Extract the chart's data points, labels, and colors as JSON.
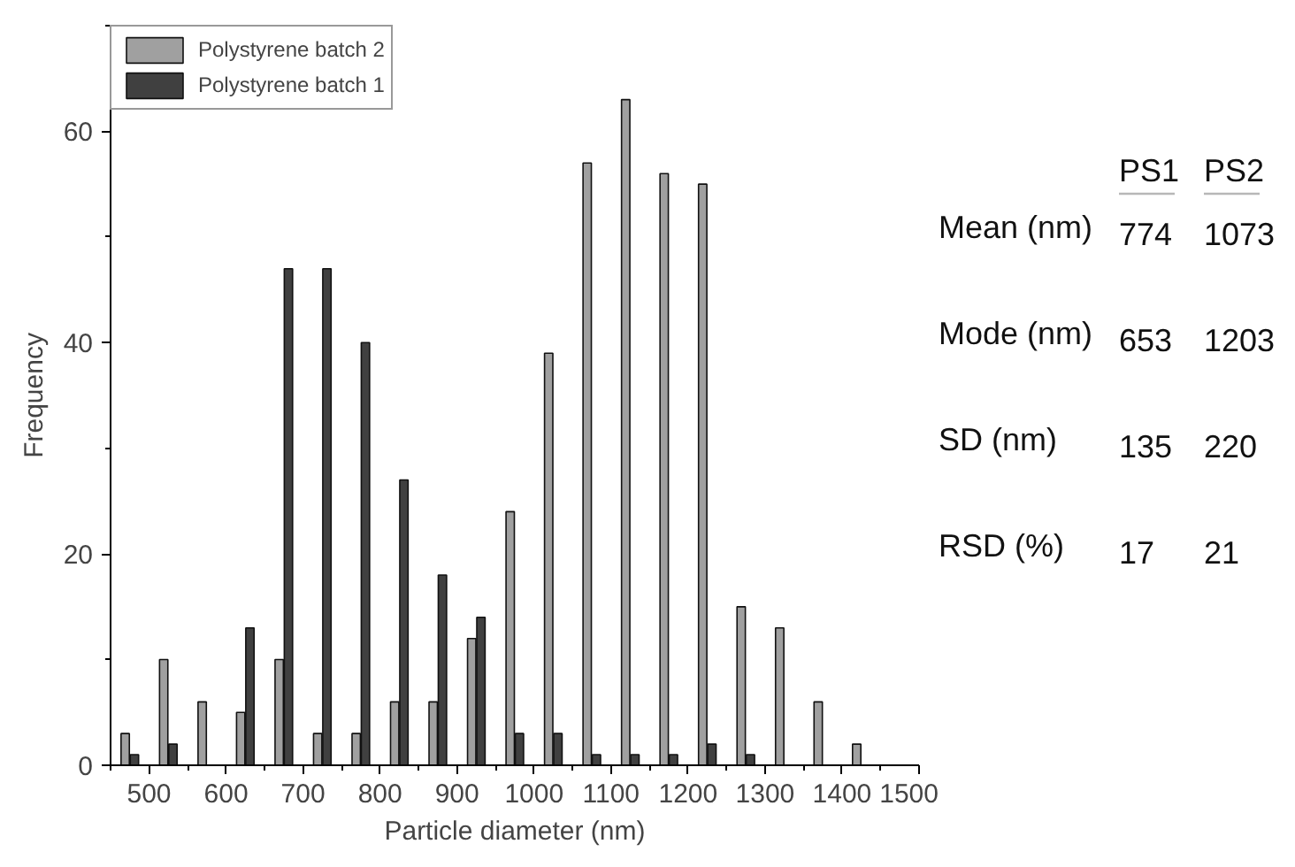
{
  "chart_data": {
    "type": "bar",
    "xlabel": "Particle diameter (nm)",
    "ylabel": "Frequency",
    "x": [
      475,
      525,
      575,
      625,
      675,
      725,
      775,
      825,
      875,
      925,
      975,
      1025,
      1075,
      1125,
      1175,
      1225,
      1275,
      1325,
      1375,
      1425
    ],
    "series": [
      {
        "name": "Polystyrene batch 2",
        "color": "#a0a0a0",
        "values": [
          3,
          10,
          6,
          5,
          10,
          3,
          3,
          6,
          6,
          12,
          24,
          39,
          57,
          63,
          56,
          55,
          15,
          13,
          6,
          2
        ]
      },
      {
        "name": "Polystyrene batch 1",
        "color": "#404040",
        "values": [
          1,
          2,
          0,
          13,
          47,
          47,
          40,
          27,
          18,
          14,
          3,
          3,
          1,
          1,
          1,
          2,
          1,
          0,
          0,
          0
        ]
      }
    ],
    "xlim": [
      450,
      1500
    ],
    "xticks": [
      500,
      600,
      700,
      800,
      900,
      1000,
      1100,
      1200,
      1300,
      1400,
      1500
    ],
    "ylim": [
      0,
      70
    ],
    "yticks": [
      0,
      20,
      40,
      60
    ],
    "grid": false,
    "legend": "top left",
    "annotations": [
      "PS1",
      "PS2",
      "Mean (nm)",
      "774",
      "1073",
      "Mode (nm)",
      "653",
      "1203",
      "SD (nm)",
      "135",
      "220",
      "RSD (%)",
      "17",
      "21"
    ]
  }
}
